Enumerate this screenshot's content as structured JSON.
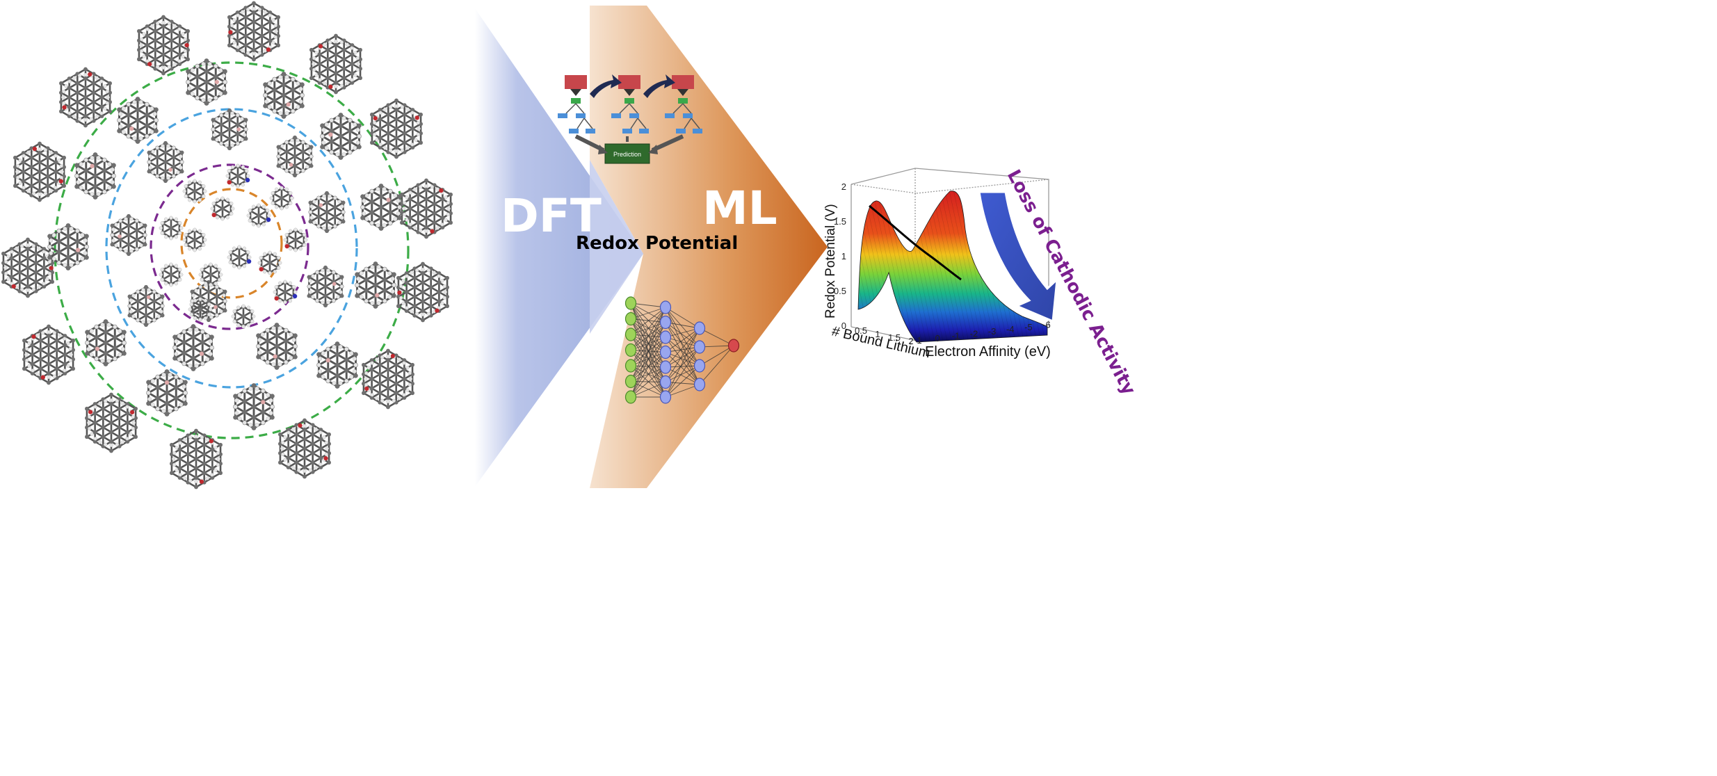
{
  "left_panel": {
    "rings": [
      {
        "name": "innermost",
        "color": "#d9852a"
      },
      {
        "name": "second",
        "color": "#7b2a8f"
      },
      {
        "name": "third",
        "color": "#4aa3df"
      },
      {
        "name": "outer",
        "color": "#3cac47"
      }
    ],
    "atom_colors": {
      "carbon": "#6f6f6f",
      "hydrogen": "#e6e6e6",
      "oxygen": "#c0282e",
      "nitrogen": "#2b2fb8",
      "boron": "#e0a8a8"
    }
  },
  "workflow": {
    "dft_label": "DFT",
    "ml_label": "ML",
    "target_label": "Redox Potential",
    "prediction_label": "Prediction",
    "dft_color": "#9fb0de",
    "ml_color": "#cf7636"
  },
  "surface_plot": {
    "zlabel": "Redox Potential (V)",
    "xlabel": "Electron Affinity (eV)",
    "ylabel": "# Bound Lithium",
    "z_ticks": [
      "0",
      "0.5",
      "1",
      "1.5",
      "2"
    ],
    "x_ticks": [
      "1",
      "0",
      "-1",
      "-2",
      "-3",
      "-4",
      "-5",
      "-6"
    ],
    "y_ticks": [
      "0.5",
      "1",
      "1.5",
      "2"
    ],
    "annotation": "Loss of Cathodic Activity",
    "annotation_color": "#7b1f8f",
    "arrow_color": "#3b56c4"
  }
}
